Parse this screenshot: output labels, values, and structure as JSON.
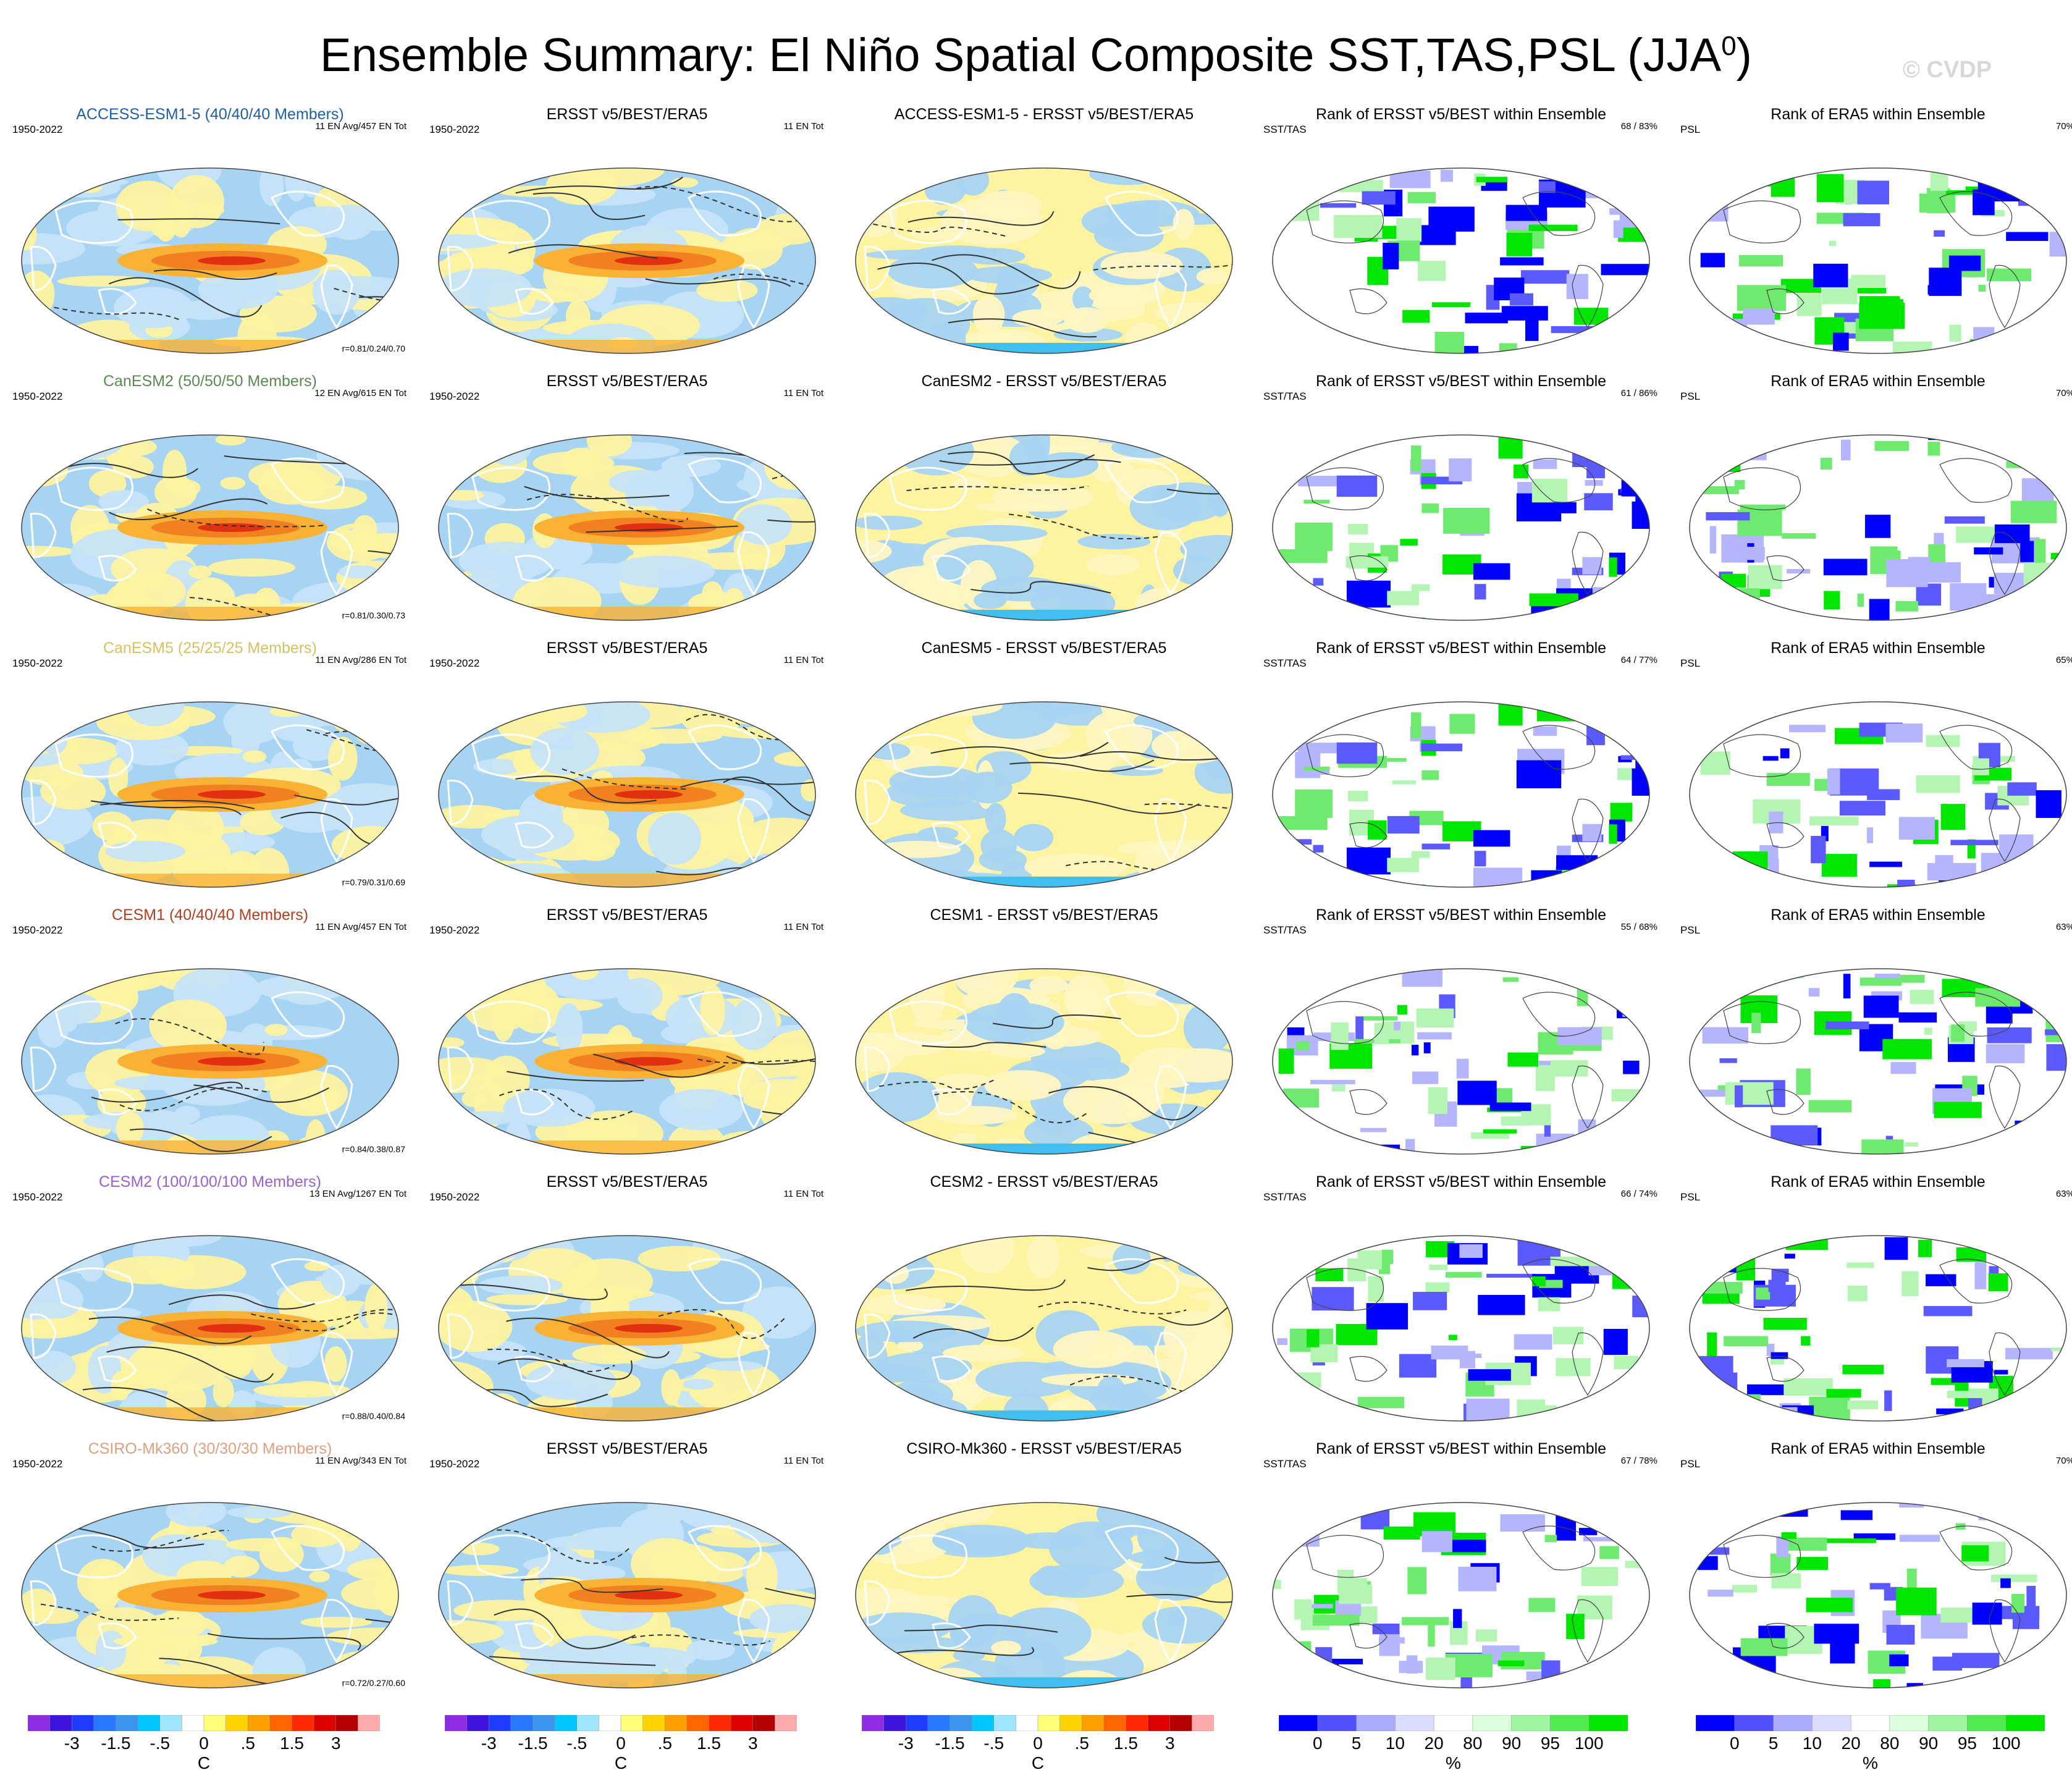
{
  "header": {
    "title": "Ensemble Summary: El Niño Spatial Composite SST,TAS,PSL (JJA",
    "title_sup": "0",
    "title_close": ")",
    "watermark": "© CVDP"
  },
  "colors": {
    "title_access": "#1f5fa6",
    "title_canesm2": "#5a8a50",
    "title_canesm5": "#d8c060",
    "title_cesm1": "#b04020",
    "title_cesm2": "#9a60d0",
    "title_csiro": "#e0a080",
    "ocean_cool": "#a6d4f2",
    "ocean_warm": "#fdf3a0",
    "warm_core_1": "#f9b233",
    "warm_core_2": "#f08020",
    "warm_core_3": "#e03010",
    "land_outline": "#ffffff",
    "rank_low_strong": "#0000ff",
    "rank_low_med": "#5a5aff",
    "rank_low_light": "#b4b4ff",
    "rank_high_light": "#b4f5b4",
    "rank_high_med": "#6eea6e",
    "rank_high_strong": "#00e600"
  },
  "rows": [
    {
      "c1": {
        "title": "ACCESS-ESM1-5 (40/40/40 Members)",
        "left": "1950-2022",
        "right": "11 EN Avg/457 EN Tot",
        "corr": "r=0.81/0.24/0.70"
      },
      "c2": {
        "title": "ERSST v5/BEST/ERA5",
        "left": "1950-2022",
        "right": "11 EN Tot"
      },
      "c3": {
        "title": "ACCESS-ESM1-5 - ERSST v5/BEST/ERA5"
      },
      "c4": {
        "title": "Rank of ERSST v5/BEST within Ensemble",
        "left": "SST/TAS",
        "right": "68 /  83%"
      },
      "c5": {
        "title": "Rank of ERA5 within Ensemble",
        "left": "PSL",
        "right": "70%"
      }
    },
    {
      "c1": {
        "title": "CanESM2 (50/50/50 Members)",
        "left": "1950-2022",
        "right": "12 EN Avg/615 EN Tot",
        "corr": "r=0.81/0.30/0.73"
      },
      "c2": {
        "title": "ERSST v5/BEST/ERA5",
        "left": "1950-2022",
        "right": "11 EN Tot"
      },
      "c3": {
        "title": "CanESM2 - ERSST v5/BEST/ERA5"
      },
      "c4": {
        "title": "Rank of ERSST v5/BEST within Ensemble",
        "left": "SST/TAS",
        "right": "61 /  86%"
      },
      "c5": {
        "title": "Rank of ERA5 within Ensemble",
        "left": "PSL",
        "right": "70%"
      }
    },
    {
      "c1": {
        "title": "CanESM5 (25/25/25 Members)",
        "left": "1950-2022",
        "right": "11 EN Avg/286 EN Tot",
        "corr": "r=0.79/0.31/0.69"
      },
      "c2": {
        "title": "ERSST v5/BEST/ERA5",
        "left": "1950-2022",
        "right": "11 EN Tot"
      },
      "c3": {
        "title": "CanESM5 - ERSST v5/BEST/ERA5"
      },
      "c4": {
        "title": "Rank of ERSST v5/BEST within Ensemble",
        "left": "SST/TAS",
        "right": "64 /  77%"
      },
      "c5": {
        "title": "Rank of ERA5 within Ensemble",
        "left": "PSL",
        "right": "65%"
      }
    },
    {
      "c1": {
        "title": "CESM1 (40/40/40 Members)",
        "left": "1950-2022",
        "right": "11 EN Avg/457 EN Tot",
        "corr": "r=0.84/0.38/0.87"
      },
      "c2": {
        "title": "ERSST v5/BEST/ERA5",
        "left": "1950-2022",
        "right": "11 EN Tot"
      },
      "c3": {
        "title": "CESM1 - ERSST v5/BEST/ERA5"
      },
      "c4": {
        "title": "Rank of ERSST v5/BEST within Ensemble",
        "left": "SST/TAS",
        "right": "55 /  68%"
      },
      "c5": {
        "title": "Rank of ERA5 within Ensemble",
        "left": "PSL",
        "right": "63%"
      }
    },
    {
      "c1": {
        "title": "CESM2 (100/100/100 Members)",
        "left": "1950-2022",
        "right": "13 EN Avg/1267 EN Tot",
        "corr": "r=0.88/0.40/0.84"
      },
      "c2": {
        "title": "ERSST v5/BEST/ERA5",
        "left": "1950-2022",
        "right": "11 EN Tot"
      },
      "c3": {
        "title": "CESM2 - ERSST v5/BEST/ERA5"
      },
      "c4": {
        "title": "Rank of ERSST v5/BEST within Ensemble",
        "left": "SST/TAS",
        "right": "66 /  74%"
      },
      "c5": {
        "title": "Rank of ERA5 within Ensemble",
        "left": "PSL",
        "right": "63%"
      }
    },
    {
      "c1": {
        "title": "CSIRO-Mk360 (30/30/30 Members)",
        "left": "1950-2022",
        "right": "11 EN Avg/343 EN Tot",
        "corr": "r=0.72/0.27/0.60"
      },
      "c2": {
        "title": "ERSST v5/BEST/ERA5",
        "left": "1950-2022",
        "right": "11 EN Tot"
      },
      "c3": {
        "title": "CSIRO-Mk360 - ERSST v5/BEST/ERA5"
      },
      "c4": {
        "title": "Rank of ERSST v5/BEST within Ensemble",
        "left": "SST/TAS",
        "right": "67 /  78%"
      },
      "c5": {
        "title": "Rank of ERA5 within Ensemble",
        "left": "PSL",
        "right": "70%"
      }
    }
  ],
  "colorbars": {
    "temp": {
      "colors": [
        "#8c2be2",
        "#3c14dc",
        "#1e3cff",
        "#2878ff",
        "#3c96f0",
        "#00c8ff",
        "#a0e6ff",
        "#ffffff",
        "#ffff78",
        "#ffd200",
        "#ffa000",
        "#ff6400",
        "#ff2800",
        "#dc0000",
        "#b40000",
        "#ffaaaa"
      ],
      "ticks": [
        "-3",
        "-1.5",
        "-.5",
        "0",
        ".5",
        "1.5",
        "3"
      ],
      "unit": "C"
    },
    "rank": {
      "colors": [
        "#0000ff",
        "#5050ff",
        "#aaaaff",
        "#dcdcff",
        "#ffffff",
        "#dcffdc",
        "#a0f5a0",
        "#50eb50",
        "#00e600"
      ],
      "ticks": [
        "0",
        "5",
        "10",
        "20",
        "80",
        "90",
        "95",
        "100"
      ],
      "unit": "%"
    }
  }
}
